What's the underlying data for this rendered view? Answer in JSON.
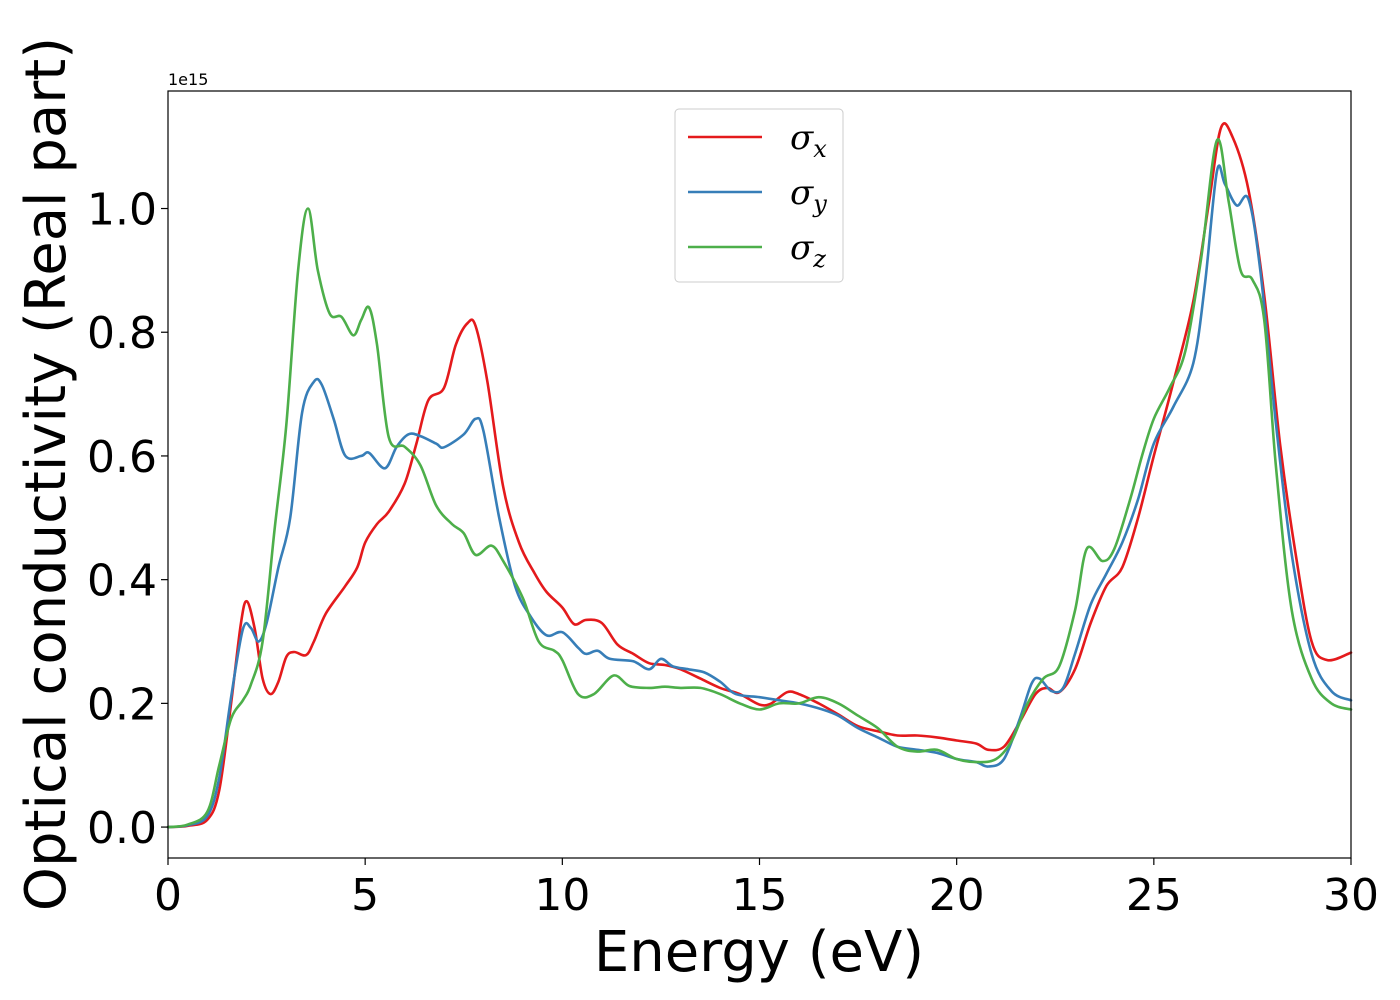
{
  "chart_data": {
    "type": "line",
    "title": "",
    "xlabel": "Energy (eV)",
    "ylabel": "Optical conductivity (Real part)",
    "y_offset_text": "1e15",
    "xlim": [
      0,
      30
    ],
    "ylim": [
      -0.05,
      1.19
    ],
    "x_ticks": [
      0,
      5,
      10,
      15,
      20,
      25,
      30
    ],
    "x_tick_labels": [
      "0",
      "5",
      "10",
      "15",
      "20",
      "25",
      "30"
    ],
    "y_ticks": [
      0.0,
      0.2,
      0.4,
      0.6,
      0.8,
      1.0
    ],
    "y_tick_labels": [
      "0.0",
      "0.2",
      "0.4",
      "0.6",
      "0.8",
      "1.0"
    ],
    "grid": false,
    "legend_position": "top-center",
    "series": [
      {
        "name": "σx",
        "symbol": "σ",
        "subscript": "x",
        "color": "#e41a1c",
        "points": [
          [
            0,
            0
          ],
          [
            0.5,
            0.002
          ],
          [
            1.0,
            0.012
          ],
          [
            1.3,
            0.06
          ],
          [
            1.6,
            0.2
          ],
          [
            1.85,
            0.33
          ],
          [
            2.0,
            0.365
          ],
          [
            2.2,
            0.32
          ],
          [
            2.4,
            0.24
          ],
          [
            2.6,
            0.215
          ],
          [
            2.8,
            0.235
          ],
          [
            3.0,
            0.275
          ],
          [
            3.2,
            0.283
          ],
          [
            3.5,
            0.278
          ],
          [
            3.7,
            0.3
          ],
          [
            4.0,
            0.345
          ],
          [
            4.5,
            0.39
          ],
          [
            4.8,
            0.42
          ],
          [
            5.0,
            0.46
          ],
          [
            5.3,
            0.49
          ],
          [
            5.6,
            0.51
          ],
          [
            6.0,
            0.555
          ],
          [
            6.3,
            0.62
          ],
          [
            6.6,
            0.69
          ],
          [
            7.0,
            0.71
          ],
          [
            7.3,
            0.78
          ],
          [
            7.6,
            0.815
          ],
          [
            7.8,
            0.81
          ],
          [
            8.1,
            0.72
          ],
          [
            8.5,
            0.55
          ],
          [
            8.9,
            0.46
          ],
          [
            9.3,
            0.41
          ],
          [
            9.6,
            0.38
          ],
          [
            10.0,
            0.355
          ],
          [
            10.3,
            0.328
          ],
          [
            10.6,
            0.335
          ],
          [
            11.0,
            0.33
          ],
          [
            11.4,
            0.295
          ],
          [
            11.8,
            0.28
          ],
          [
            12.2,
            0.265
          ],
          [
            12.6,
            0.262
          ],
          [
            13.0,
            0.255
          ],
          [
            13.5,
            0.24
          ],
          [
            14.0,
            0.225
          ],
          [
            14.5,
            0.215
          ],
          [
            15.0,
            0.198
          ],
          [
            15.3,
            0.2
          ],
          [
            15.7,
            0.218
          ],
          [
            16.0,
            0.215
          ],
          [
            16.5,
            0.2
          ],
          [
            17.0,
            0.182
          ],
          [
            17.5,
            0.163
          ],
          [
            18.0,
            0.155
          ],
          [
            18.5,
            0.148
          ],
          [
            19.0,
            0.148
          ],
          [
            19.5,
            0.145
          ],
          [
            20.0,
            0.14
          ],
          [
            20.5,
            0.135
          ],
          [
            20.8,
            0.125
          ],
          [
            21.2,
            0.13
          ],
          [
            21.6,
            0.17
          ],
          [
            22.0,
            0.215
          ],
          [
            22.3,
            0.225
          ],
          [
            22.6,
            0.218
          ],
          [
            23.0,
            0.255
          ],
          [
            23.4,
            0.33
          ],
          [
            23.8,
            0.39
          ],
          [
            24.2,
            0.42
          ],
          [
            24.6,
            0.5
          ],
          [
            25.0,
            0.6
          ],
          [
            25.5,
            0.72
          ],
          [
            26.0,
            0.85
          ],
          [
            26.4,
            1.01
          ],
          [
            26.7,
            1.13
          ],
          [
            27.0,
            1.115
          ],
          [
            27.4,
            1.03
          ],
          [
            27.8,
            0.86
          ],
          [
            28.2,
            0.62
          ],
          [
            28.6,
            0.44
          ],
          [
            29.0,
            0.3
          ],
          [
            29.4,
            0.27
          ],
          [
            30.0,
            0.282
          ]
        ]
      },
      {
        "name": "σy",
        "symbol": "σ",
        "subscript": "y",
        "color": "#377eb8",
        "points": [
          [
            0,
            0
          ],
          [
            0.5,
            0.003
          ],
          [
            1.0,
            0.018
          ],
          [
            1.3,
            0.08
          ],
          [
            1.6,
            0.21
          ],
          [
            1.9,
            0.32
          ],
          [
            2.1,
            0.322
          ],
          [
            2.3,
            0.3
          ],
          [
            2.5,
            0.33
          ],
          [
            2.8,
            0.42
          ],
          [
            3.1,
            0.5
          ],
          [
            3.4,
            0.67
          ],
          [
            3.7,
            0.72
          ],
          [
            3.9,
            0.715
          ],
          [
            4.2,
            0.66
          ],
          [
            4.5,
            0.6
          ],
          [
            4.9,
            0.6
          ],
          [
            5.1,
            0.605
          ],
          [
            5.5,
            0.58
          ],
          [
            5.8,
            0.615
          ],
          [
            6.1,
            0.635
          ],
          [
            6.4,
            0.632
          ],
          [
            6.8,
            0.62
          ],
          [
            7.0,
            0.614
          ],
          [
            7.5,
            0.635
          ],
          [
            7.8,
            0.66
          ],
          [
            8.0,
            0.64
          ],
          [
            8.4,
            0.5
          ],
          [
            8.8,
            0.39
          ],
          [
            9.2,
            0.34
          ],
          [
            9.6,
            0.31
          ],
          [
            10.0,
            0.315
          ],
          [
            10.4,
            0.29
          ],
          [
            10.6,
            0.28
          ],
          [
            10.9,
            0.285
          ],
          [
            11.2,
            0.272
          ],
          [
            11.8,
            0.268
          ],
          [
            12.2,
            0.255
          ],
          [
            12.5,
            0.272
          ],
          [
            12.8,
            0.26
          ],
          [
            13.2,
            0.255
          ],
          [
            13.6,
            0.25
          ],
          [
            14.0,
            0.235
          ],
          [
            14.4,
            0.215
          ],
          [
            15.0,
            0.21
          ],
          [
            15.5,
            0.205
          ],
          [
            16.0,
            0.2
          ],
          [
            16.6,
            0.19
          ],
          [
            17.0,
            0.18
          ],
          [
            17.5,
            0.16
          ],
          [
            18.0,
            0.145
          ],
          [
            18.5,
            0.13
          ],
          [
            19.0,
            0.125
          ],
          [
            19.5,
            0.12
          ],
          [
            20.0,
            0.11
          ],
          [
            20.5,
            0.105
          ],
          [
            20.8,
            0.098
          ],
          [
            21.2,
            0.11
          ],
          [
            21.6,
            0.175
          ],
          [
            21.9,
            0.232
          ],
          [
            22.1,
            0.24
          ],
          [
            22.4,
            0.22
          ],
          [
            22.7,
            0.225
          ],
          [
            23.0,
            0.28
          ],
          [
            23.4,
            0.36
          ],
          [
            23.8,
            0.41
          ],
          [
            24.2,
            0.46
          ],
          [
            24.6,
            0.53
          ],
          [
            25.0,
            0.62
          ],
          [
            25.5,
            0.68
          ],
          [
            26.0,
            0.75
          ],
          [
            26.3,
            0.88
          ],
          [
            26.6,
            1.06
          ],
          [
            26.8,
            1.04
          ],
          [
            27.1,
            1.005
          ],
          [
            27.4,
            1.015
          ],
          [
            27.7,
            0.9
          ],
          [
            28.1,
            0.65
          ],
          [
            28.5,
            0.44
          ],
          [
            29.0,
            0.28
          ],
          [
            29.5,
            0.22
          ],
          [
            30.0,
            0.205
          ]
        ]
      },
      {
        "name": "σz",
        "symbol": "σ",
        "subscript": "z",
        "color": "#4daf4a",
        "points": [
          [
            0,
            0
          ],
          [
            0.5,
            0.004
          ],
          [
            1.0,
            0.025
          ],
          [
            1.3,
            0.1
          ],
          [
            1.6,
            0.175
          ],
          [
            1.9,
            0.205
          ],
          [
            2.1,
            0.23
          ],
          [
            2.4,
            0.3
          ],
          [
            2.7,
            0.48
          ],
          [
            3.0,
            0.65
          ],
          [
            3.3,
            0.9
          ],
          [
            3.55,
            1.0
          ],
          [
            3.8,
            0.9
          ],
          [
            4.1,
            0.83
          ],
          [
            4.4,
            0.825
          ],
          [
            4.7,
            0.795
          ],
          [
            4.9,
            0.82
          ],
          [
            5.1,
            0.84
          ],
          [
            5.3,
            0.78
          ],
          [
            5.6,
            0.63
          ],
          [
            6.0,
            0.615
          ],
          [
            6.4,
            0.585
          ],
          [
            6.8,
            0.52
          ],
          [
            7.2,
            0.49
          ],
          [
            7.5,
            0.475
          ],
          [
            7.8,
            0.44
          ],
          [
            8.2,
            0.455
          ],
          [
            8.5,
            0.43
          ],
          [
            9.0,
            0.37
          ],
          [
            9.4,
            0.3
          ],
          [
            9.8,
            0.285
          ],
          [
            10.0,
            0.27
          ],
          [
            10.4,
            0.215
          ],
          [
            10.8,
            0.215
          ],
          [
            11.3,
            0.245
          ],
          [
            11.7,
            0.228
          ],
          [
            12.2,
            0.225
          ],
          [
            12.6,
            0.227
          ],
          [
            13.0,
            0.225
          ],
          [
            13.5,
            0.225
          ],
          [
            14.0,
            0.215
          ],
          [
            14.5,
            0.2
          ],
          [
            15.0,
            0.19
          ],
          [
            15.5,
            0.2
          ],
          [
            16.0,
            0.2
          ],
          [
            16.5,
            0.21
          ],
          [
            17.0,
            0.2
          ],
          [
            17.5,
            0.18
          ],
          [
            18.0,
            0.16
          ],
          [
            18.5,
            0.13
          ],
          [
            19.0,
            0.122
          ],
          [
            19.5,
            0.125
          ],
          [
            20.0,
            0.11
          ],
          [
            20.5,
            0.105
          ],
          [
            21.0,
            0.11
          ],
          [
            21.4,
            0.14
          ],
          [
            21.8,
            0.2
          ],
          [
            22.2,
            0.24
          ],
          [
            22.6,
            0.26
          ],
          [
            23.0,
            0.35
          ],
          [
            23.3,
            0.45
          ],
          [
            23.7,
            0.43
          ],
          [
            24.0,
            0.45
          ],
          [
            24.4,
            0.53
          ],
          [
            24.7,
            0.6
          ],
          [
            25.0,
            0.66
          ],
          [
            25.4,
            0.71
          ],
          [
            25.8,
            0.77
          ],
          [
            26.2,
            0.92
          ],
          [
            26.6,
            1.11
          ],
          [
            26.9,
            1.01
          ],
          [
            27.2,
            0.9
          ],
          [
            27.5,
            0.885
          ],
          [
            27.8,
            0.82
          ],
          [
            28.1,
            0.58
          ],
          [
            28.5,
            0.35
          ],
          [
            29.0,
            0.24
          ],
          [
            29.5,
            0.2
          ],
          [
            30.0,
            0.19
          ]
        ]
      }
    ]
  }
}
